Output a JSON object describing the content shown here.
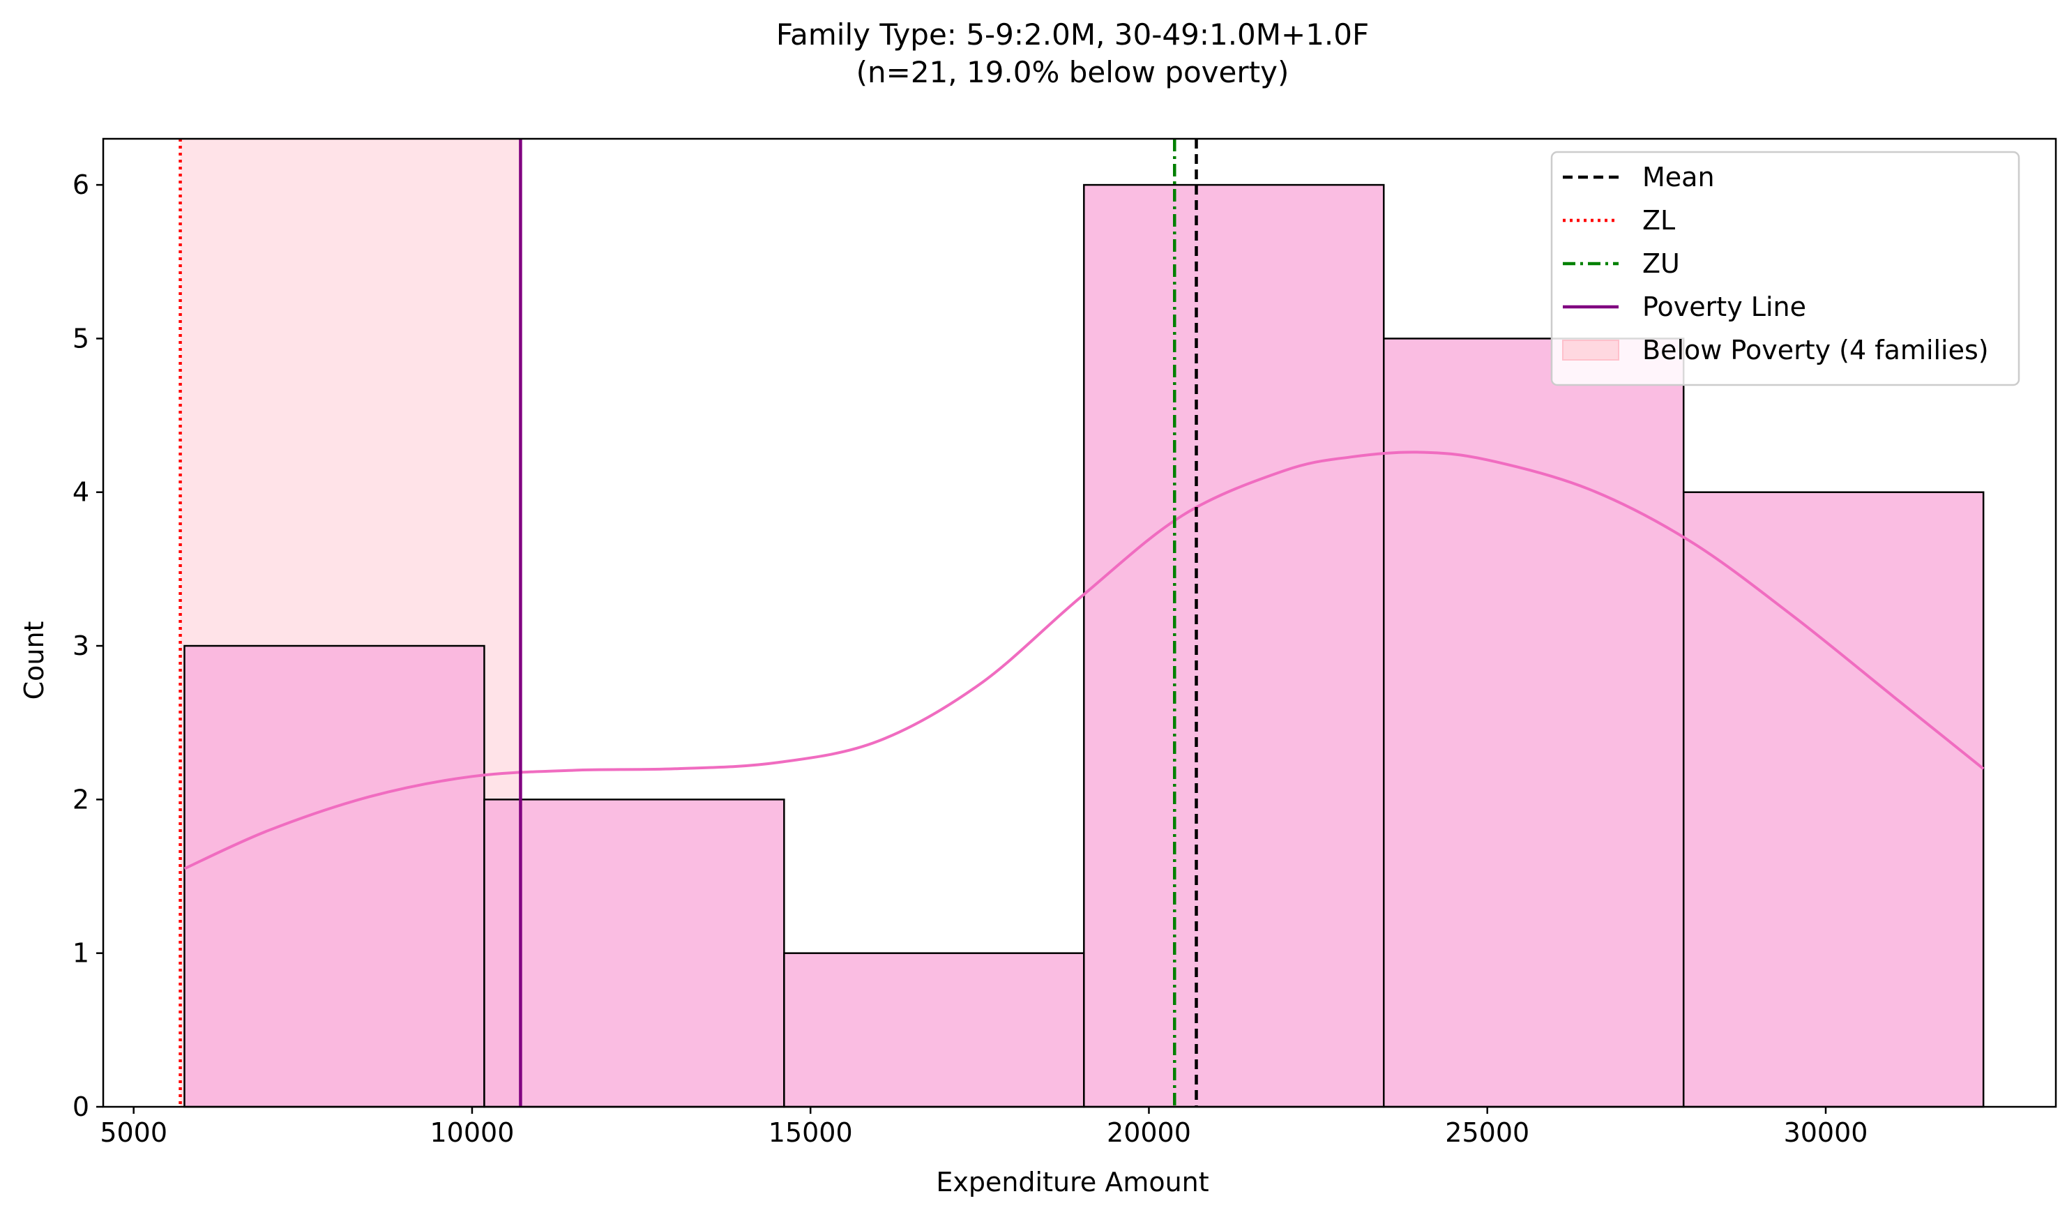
{
  "chart_data": {
    "type": "histogram",
    "title": "Family Type: 5-9:2.0M, 30-49:1.0M+1.0F",
    "subtitle": "(n=21, 19.0% below poverty)",
    "xlabel": "Expenditure Amount",
    "ylabel": "Count",
    "xlim": [
      4550,
      33400
    ],
    "ylim": [
      0,
      6.3
    ],
    "xticks": [
      5000,
      10000,
      15000,
      20000,
      25000,
      30000
    ],
    "yticks": [
      0,
      1,
      2,
      3,
      4,
      5,
      6
    ],
    "xtick_labels": [
      "5000",
      "10000",
      "15000",
      "20000",
      "25000",
      "30000"
    ],
    "ytick_labels": [
      "0",
      "1",
      "2",
      "3",
      "4",
      "5",
      "6"
    ],
    "bin_edges": [
      5750,
      10180,
      14610,
      19040,
      23470,
      27900,
      32330
    ],
    "counts": [
      3,
      2,
      1,
      6,
      5,
      4
    ],
    "bar_color": "#f9b1dd",
    "kde": {
      "color": "#f06cc0",
      "x": [
        5750,
        7000,
        8500,
        10000,
        11500,
        13000,
        14500,
        16000,
        17500,
        19000,
        20500,
        22000,
        23000,
        24000,
        25000,
        26500,
        28000,
        29500,
        31000,
        32330
      ],
      "y": [
        1.55,
        1.8,
        2.02,
        2.15,
        2.19,
        2.2,
        2.24,
        2.38,
        2.75,
        3.32,
        3.85,
        4.14,
        4.23,
        4.26,
        4.21,
        4.02,
        3.68,
        3.2,
        2.67,
        2.2
      ]
    },
    "shaded_region": {
      "x0": 5689,
      "x1": 10716,
      "color": "#ffc0cb",
      "label": "Below Poverty (4 families)"
    },
    "vlines": [
      {
        "name": "Mean",
        "x": 20701,
        "color": "#000000",
        "style": "dashed",
        "label": "Mean: 20,701"
      },
      {
        "name": "ZL",
        "x": 5689,
        "color": "#ff0000",
        "style": "dotted",
        "label": "ZL: 5,689"
      },
      {
        "name": "ZU",
        "x": 20379,
        "color": "#008000",
        "style": "dashdot",
        "label": "ZU: 20,379"
      },
      {
        "name": "Poverty Line",
        "x": 10716,
        "color": "#800080",
        "style": "solid",
        "label": "Poverty: 10,716"
      }
    ],
    "legend": {
      "position": "top-right",
      "entries": [
        {
          "label": "Mean",
          "kind": "line",
          "color": "#000000",
          "style": "dashed"
        },
        {
          "label": "ZL",
          "kind": "line",
          "color": "#ff0000",
          "style": "dotted"
        },
        {
          "label": "ZU",
          "kind": "line",
          "color": "#008000",
          "style": "dashdot"
        },
        {
          "label": "Poverty Line",
          "kind": "line",
          "color": "#800080",
          "style": "solid"
        },
        {
          "label": "Below Poverty (4 families)",
          "kind": "patch",
          "color": "#ffc0cb"
        }
      ]
    }
  }
}
